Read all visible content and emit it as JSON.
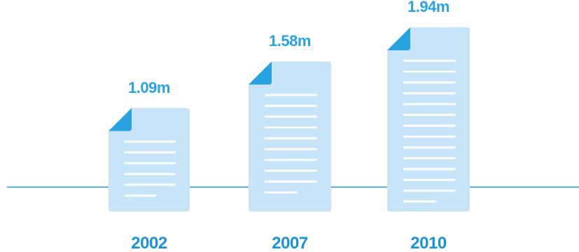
{
  "chart_data": {
    "type": "bar",
    "categories": [
      "2002",
      "2007",
      "2010"
    ],
    "values": [
      1.09,
      1.58,
      1.94
    ],
    "value_labels": [
      "1.09m",
      "1.58m",
      "1.94m"
    ],
    "title": "",
    "xlabel": "",
    "ylabel": "",
    "ylim": [
      0,
      2.1
    ],
    "grid": false,
    "legend": "none",
    "bar_style": "document-icon"
  },
  "colors": {
    "accent": "#29a3e0",
    "baseline": "#5ab4ea",
    "page_fill": "#c7e4f8",
    "page_lines": "#ffffff",
    "year_text": "#1a93d6",
    "value_text": "#29a3e0"
  }
}
